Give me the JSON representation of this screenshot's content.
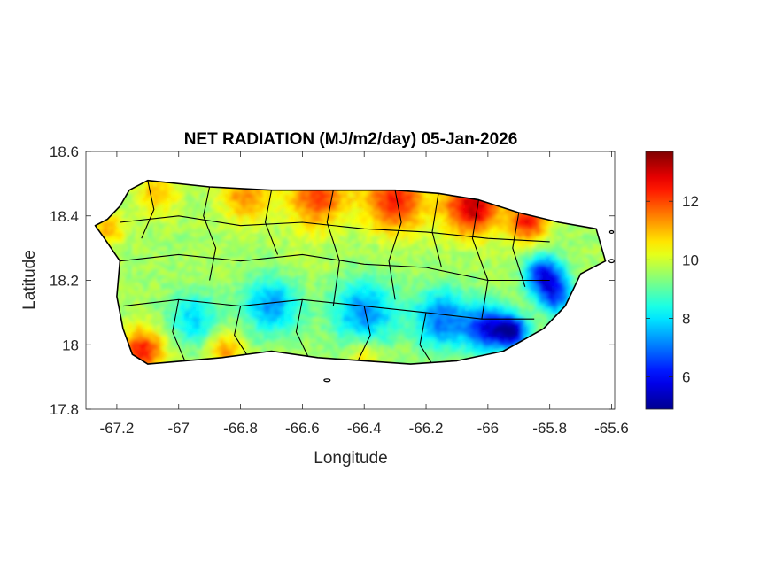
{
  "title": "NET RADIATION (MJ/m2/day) 05-Jan-2026",
  "xlabel": "Longitude",
  "ylabel": "Latitude",
  "x_ticks": [
    {
      "value": -67.2,
      "label": "-67.2"
    },
    {
      "value": -67.0,
      "label": "-67"
    },
    {
      "value": -66.8,
      "label": "-66.8"
    },
    {
      "value": -66.6,
      "label": "-66.6"
    },
    {
      "value": -66.4,
      "label": "-66.4"
    },
    {
      "value": -66.2,
      "label": "-66.2"
    },
    {
      "value": -66.0,
      "label": "-66"
    },
    {
      "value": -65.8,
      "label": "-65.8"
    },
    {
      "value": -65.6,
      "label": "-65.6"
    }
  ],
  "y_ticks": [
    {
      "value": 17.8,
      "label": "17.8"
    },
    {
      "value": 18.0,
      "label": "18"
    },
    {
      "value": 18.2,
      "label": "18.2"
    },
    {
      "value": 18.4,
      "label": "18.4"
    },
    {
      "value": 18.6,
      "label": "18.6"
    }
  ],
  "colorbar": {
    "colormap": "jet",
    "min": 4.9,
    "max": 13.7,
    "ticks": [
      {
        "value": 6,
        "label": "6"
      },
      {
        "value": 8,
        "label": "8"
      },
      {
        "value": 10,
        "label": "10"
      },
      {
        "value": 12,
        "label": "12"
      }
    ]
  },
  "colors": {
    "jet_stops": [
      "#00008f",
      "#0000ff",
      "#00ffff",
      "#ffff00",
      "#ff0000",
      "#800000"
    ],
    "outline": "#000000"
  },
  "chart_data": {
    "type": "heatmap",
    "title": "NET RADIATION (MJ/m2/day) 05-Jan-2026",
    "xlabel": "Longitude",
    "ylabel": "Latitude",
    "xlim": [
      -67.3,
      -65.59
    ],
    "ylim": [
      17.8,
      18.6
    ],
    "zlim": [
      4.9,
      13.7
    ],
    "units": "MJ/m2/day",
    "grid": false,
    "region_outline": [
      [
        -67.27,
        18.37
      ],
      [
        -67.23,
        18.39
      ],
      [
        -67.19,
        18.43
      ],
      [
        -67.16,
        18.48
      ],
      [
        -67.1,
        18.51
      ],
      [
        -66.9,
        18.49
      ],
      [
        -66.7,
        18.48
      ],
      [
        -66.5,
        18.48
      ],
      [
        -66.3,
        18.48
      ],
      [
        -66.16,
        18.47
      ],
      [
        -66.03,
        18.45
      ],
      [
        -65.9,
        18.41
      ],
      [
        -65.77,
        18.38
      ],
      [
        -65.65,
        18.36
      ],
      [
        -65.62,
        18.26
      ],
      [
        -65.7,
        18.22
      ],
      [
        -65.75,
        18.12
      ],
      [
        -65.82,
        18.05
      ],
      [
        -65.95,
        17.98
      ],
      [
        -66.1,
        17.95
      ],
      [
        -66.25,
        17.94
      ],
      [
        -66.4,
        17.95
      ],
      [
        -66.55,
        17.96
      ],
      [
        -66.7,
        17.98
      ],
      [
        -66.86,
        17.96
      ],
      [
        -66.98,
        17.95
      ],
      [
        -67.1,
        17.94
      ],
      [
        -67.15,
        17.97
      ],
      [
        -67.18,
        18.05
      ],
      [
        -67.2,
        18.15
      ],
      [
        -67.19,
        18.26
      ],
      [
        -67.24,
        18.33
      ]
    ],
    "field": {
      "base_value": 9.6,
      "hotspots": [
        {
          "lon": -66.55,
          "lat": 18.46,
          "value": 12.2,
          "spread": 0.09
        },
        {
          "lon": -66.3,
          "lat": 18.45,
          "value": 12.5,
          "spread": 0.1
        },
        {
          "lon": -66.05,
          "lat": 18.43,
          "value": 13.2,
          "spread": 0.09
        },
        {
          "lon": -65.87,
          "lat": 18.38,
          "value": 12.6,
          "spread": 0.06
        },
        {
          "lon": -66.78,
          "lat": 18.46,
          "value": 11.4,
          "spread": 0.08
        },
        {
          "lon": -67.07,
          "lat": 18.47,
          "value": 10.9,
          "spread": 0.07
        },
        {
          "lon": -67.12,
          "lat": 17.98,
          "value": 12.5,
          "spread": 0.07
        },
        {
          "lon": -66.85,
          "lat": 17.98,
          "value": 11.2,
          "spread": 0.06
        },
        {
          "lon": -66.4,
          "lat": 17.97,
          "value": 10.8,
          "spread": 0.05
        },
        {
          "lon": -67.23,
          "lat": 18.36,
          "value": 11.2,
          "spread": 0.05
        },
        {
          "lon": -66.95,
          "lat": 18.08,
          "value": 7.8,
          "spread": 0.08
        },
        {
          "lon": -66.7,
          "lat": 18.12,
          "value": 7.4,
          "spread": 0.09
        },
        {
          "lon": -66.4,
          "lat": 18.1,
          "value": 7.2,
          "spread": 0.1
        },
        {
          "lon": -66.15,
          "lat": 18.08,
          "value": 6.9,
          "spread": 0.09
        },
        {
          "lon": -66.0,
          "lat": 18.05,
          "value": 5.9,
          "spread": 0.07
        },
        {
          "lon": -65.92,
          "lat": 18.04,
          "value": 5.6,
          "spread": 0.05
        },
        {
          "lon": -65.82,
          "lat": 18.22,
          "value": 6.2,
          "spread": 0.06
        },
        {
          "lon": -65.78,
          "lat": 18.15,
          "value": 6.7,
          "spread": 0.06
        },
        {
          "lon": -66.6,
          "lat": 18.28,
          "value": 9.9,
          "spread": 0.07
        }
      ]
    },
    "municipality_boundaries": [
      [
        [
          -67.1,
          18.51
        ],
        [
          -67.08,
          18.42
        ],
        [
          -67.12,
          18.33
        ]
      ],
      [
        [
          -66.9,
          18.49
        ],
        [
          -66.92,
          18.4
        ],
        [
          -66.88,
          18.3
        ],
        [
          -66.9,
          18.2
        ]
      ],
      [
        [
          -66.7,
          18.48
        ],
        [
          -66.72,
          18.38
        ],
        [
          -66.68,
          18.28
        ]
      ],
      [
        [
          -66.5,
          18.48
        ],
        [
          -66.52,
          18.38
        ],
        [
          -66.48,
          18.26
        ],
        [
          -66.5,
          18.12
        ]
      ],
      [
        [
          -66.3,
          18.48
        ],
        [
          -66.28,
          18.38
        ],
        [
          -66.32,
          18.26
        ],
        [
          -66.3,
          18.14
        ]
      ],
      [
        [
          -66.16,
          18.47
        ],
        [
          -66.18,
          18.35
        ],
        [
          -66.15,
          18.24
        ]
      ],
      [
        [
          -66.03,
          18.45
        ],
        [
          -66.05,
          18.33
        ],
        [
          -66.0,
          18.2
        ],
        [
          -66.02,
          18.08
        ]
      ],
      [
        [
          -65.9,
          18.41
        ],
        [
          -65.92,
          18.3
        ],
        [
          -65.88,
          18.18
        ]
      ],
      [
        [
          -67.19,
          18.26
        ],
        [
          -67.0,
          18.28
        ],
        [
          -66.8,
          18.26
        ],
        [
          -66.6,
          18.28
        ],
        [
          -66.4,
          18.25
        ],
        [
          -66.2,
          18.24
        ],
        [
          -66.0,
          18.2
        ],
        [
          -65.8,
          18.2
        ]
      ],
      [
        [
          -67.18,
          18.12
        ],
        [
          -67.0,
          18.14
        ],
        [
          -66.8,
          18.12
        ],
        [
          -66.6,
          18.14
        ],
        [
          -66.4,
          18.12
        ],
        [
          -66.2,
          18.1
        ],
        [
          -66.02,
          18.08
        ],
        [
          -65.85,
          18.08
        ]
      ],
      [
        [
          -67.19,
          18.38
        ],
        [
          -67.0,
          18.4
        ],
        [
          -66.8,
          18.37
        ],
        [
          -66.6,
          18.38
        ],
        [
          -66.4,
          18.36
        ],
        [
          -66.2,
          18.35
        ],
        [
          -66.0,
          18.33
        ],
        [
          -65.8,
          18.32
        ]
      ],
      [
        [
          -67.0,
          18.14
        ],
        [
          -67.02,
          18.04
        ],
        [
          -66.98,
          17.95
        ]
      ],
      [
        [
          -66.8,
          18.12
        ],
        [
          -66.82,
          18.03
        ],
        [
          -66.78,
          17.97
        ]
      ],
      [
        [
          -66.6,
          18.14
        ],
        [
          -66.62,
          18.04
        ],
        [
          -66.58,
          17.96
        ]
      ],
      [
        [
          -66.4,
          18.12
        ],
        [
          -66.38,
          18.03
        ],
        [
          -66.42,
          17.95
        ]
      ],
      [
        [
          -66.2,
          18.1
        ],
        [
          -66.22,
          18.0
        ],
        [
          -66.18,
          17.94
        ]
      ]
    ],
    "small_islands": [
      {
        "lon": -66.52,
        "lat": 17.89,
        "rx": 0.01,
        "ry": 0.004
      },
      {
        "lon": -65.6,
        "lat": 18.35,
        "rx": 0.006,
        "ry": 0.004
      },
      {
        "lon": -65.6,
        "lat": 18.26,
        "rx": 0.008,
        "ry": 0.005
      }
    ]
  }
}
